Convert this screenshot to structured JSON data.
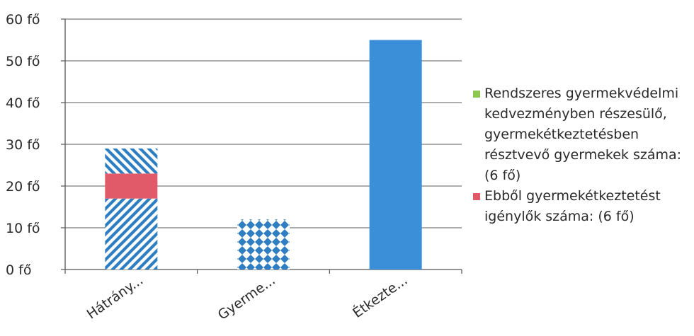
{
  "chart_data": {
    "type": "bar",
    "stacked": true,
    "categories": [
      "Hátrány...",
      "Gyerme...",
      "Étkezte..."
    ],
    "y_tick_labels": [
      "0 fő",
      "10 fő",
      "20 fő",
      "30 fő",
      "40 fő",
      "50 fő",
      "60 fő"
    ],
    "ylim": [
      0,
      60
    ],
    "grid": true,
    "legend_position": "right",
    "segments": [
      {
        "category": "Hátrány...",
        "from": 0,
        "to": 17,
        "fill": "#2e7ec2",
        "pattern": "diagonal-stripes"
      },
      {
        "category": "Hátrány...",
        "from": 17,
        "to": 23,
        "fill": "#e05a6a",
        "pattern": "solid"
      },
      {
        "category": "Hátrány...",
        "from": 23,
        "to": 29,
        "fill": "#2e7ec2",
        "pattern": "diagonal-stripes-reverse"
      },
      {
        "category": "Gyerme...",
        "from": 0,
        "to": 12,
        "fill": "#2e7ec2",
        "pattern": "diamonds"
      },
      {
        "category": "Étkezte...",
        "from": 0,
        "to": 55,
        "fill": "#3b8fd9",
        "pattern": "solid"
      }
    ],
    "legend": [
      {
        "name": "Rendszeres gyermekvédelmi kedvezményben részesülő, gyermekétkeztetésben résztvevő gyermekek száma: (6 fő)",
        "color": "#8cc751"
      },
      {
        "name": "Ebből gyermekétkeztetést igénylők száma: (6 fő)",
        "color": "#e05a6a"
      }
    ]
  }
}
